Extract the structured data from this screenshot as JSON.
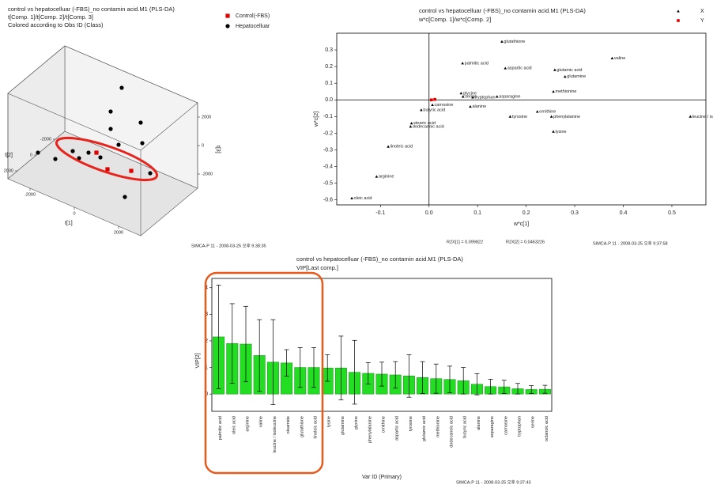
{
  "chart_data": [
    {
      "type": "scatter3d",
      "title": "control vs hepatocelluar (-FBS)_no contamin acid.M1 (PLS-DA)",
      "subtitle": "t[Comp. 1]/t[Comp. 2]/t[Comp. 3]",
      "caption": "Colored according to Obs ID (Class)",
      "x_label": "t[1]",
      "y_label": "t[2]",
      "z_label": "t[3]",
      "xlim": [
        -3000,
        3000
      ],
      "ylim": [
        -3000,
        3000
      ],
      "zlim": [
        -3000,
        3000
      ],
      "xticks": [
        -2000,
        0,
        2000
      ],
      "yticks": [
        -2000,
        0,
        2000
      ],
      "zticks": [
        -2000,
        0,
        2000
      ],
      "series": [
        {
          "name": "Control(-FBS)",
          "color": "#e00000",
          "marker": "square",
          "x": [
            1160,
            1925,
            236
          ],
          "y": [
            2208,
            1490,
            1217
          ],
          "z": [
            0,
            0,
            0
          ]
        },
        {
          "name": "Hepatocelluar",
          "color": "#000000",
          "marker": "circle",
          "x": [
            208,
            321,
            613,
            1245,
            1264,
            0,
            524,
            -85,
            -528,
            -1019,
            -2528,
            2160,
            2321,
            -57
          ],
          "y": [
            -349,
            -85,
            -236,
            -1094,
            -1217,
            1500,
            1472,
            2302,
            1934,
            2623,
            934,
            2708,
            415,
            -2132
          ],
          "z": [
            2000,
            1000,
            0,
            1500,
            0,
            0,
            0,
            0,
            0,
            -500,
            -2000,
            -1000,
            -500,
            2500
          ]
        }
      ],
      "footer": "SIMCA-P 11 - 2008-03-25 오후 9:38:35"
    },
    {
      "type": "scatter",
      "title": "control vs hepatocelluar (-FBS)_no contamin acid.M1 (PLS-DA)",
      "subtitle": "w*c[Comp. 1]/w*c[Comp. 2]",
      "x_label": "w*c[1]",
      "y_label": "w*c[2]",
      "xlim": [
        -0.19,
        0.57
      ],
      "ylim": [
        -0.63,
        0.4
      ],
      "xticks": [
        -0.1,
        {
          "value": 0,
          "label": "0.0"
        },
        0.1,
        0.2,
        0.3,
        0.4,
        0.5
      ],
      "yticks": [
        -0.6,
        -0.5,
        -0.4,
        -0.3,
        -0.2,
        -0.1,
        {
          "value": 0,
          "label": "0.0"
        },
        0.1,
        0.2,
        0.3
      ],
      "zero_lines": true,
      "series": [
        {
          "name": "X",
          "color": "#000000",
          "marker": "triangle",
          "labels": [
            "glutathione",
            "valine",
            "palmitic acid",
            "aspartic acid",
            "glutamic acid",
            "glutamine",
            "methionine",
            "glycine",
            "serine",
            "tryptophan",
            "asparagine",
            "carnosine",
            "butyric acid",
            "alanine",
            "ornithine",
            "tyrosine",
            "phenylalanine",
            "leucine / isoleucine",
            "stearic acid",
            "dodecanoic acid",
            "lysine",
            "linoleic acid",
            "arginine",
            "oleic acid"
          ],
          "x": [
            0.15,
            0.377,
            0.069,
            0.157,
            0.259,
            0.28,
            0.256,
            0.066,
            0.07,
            0.09,
            0.14,
            0.007,
            -0.016,
            0.085,
            0.223,
            0.167,
            0.252,
            0.538,
            -0.036,
            -0.038,
            0.256,
            -0.084,
            -0.108,
            -0.159
          ],
          "y": [
            0.35,
            0.25,
            0.22,
            0.19,
            0.18,
            0.14,
            0.05,
            0.04,
            0.02,
            0.015,
            0.02,
            -0.03,
            -0.06,
            -0.04,
            -0.07,
            -0.1,
            -0.1,
            -0.1,
            -0.14,
            -0.16,
            -0.19,
            -0.28,
            -0.46,
            -0.59
          ]
        },
        {
          "name": "Y",
          "color": "#e00000",
          "marker": "square",
          "x": [
            0.005,
            0.012
          ],
          "y": [
            0.0,
            0.003
          ]
        }
      ],
      "annotations": [
        "R2X[1] = 0.099822",
        "R2X[2] = 0.0463226"
      ],
      "footer": "SIMCA-P 11 - 2008-03-25 오후 9:37:58"
    },
    {
      "type": "bar",
      "title": "control vs hepatocelluar (-FBS)_no contamin acid.M1 (PLS-DA)",
      "subtitle": "VIP[Last comp.]",
      "x_label": "Var ID (Primary)",
      "y_label": "VIP[2]",
      "color": "#22dd22",
      "categories": [
        "palmitic acid",
        "oleic acid",
        "arginine",
        "valine",
        "leucine / isoleucine",
        "oleamide",
        "glutathione",
        "linoleic acid",
        "lysine",
        "glutamine",
        "glycine",
        "phenylalanine",
        "ornithine",
        "aspartic acid",
        "tyrosine",
        "glutamic acid",
        "methionine",
        "dodecanoic acid",
        "butyric acid",
        "alanine",
        "asparagine",
        "carnosine",
        "tryptophan",
        "serine",
        "octanoic acid"
      ],
      "values": [
        2.15,
        1.9,
        1.88,
        1.45,
        1.2,
        1.17,
        1.0,
        1.0,
        0.98,
        0.98,
        0.82,
        0.78,
        0.75,
        0.72,
        0.68,
        0.62,
        0.58,
        0.55,
        0.5,
        0.37,
        0.28,
        0.27,
        0.2,
        0.17,
        0.18
      ],
      "errors": [
        1.95,
        1.5,
        1.42,
        1.35,
        1.6,
        0.5,
        0.75,
        0.75,
        0.5,
        1.2,
        1.2,
        0.4,
        0.45,
        0.5,
        0.8,
        0.6,
        0.55,
        0.5,
        0.5,
        0.4,
        0.28,
        0.25,
        0.2,
        0.15,
        0.15
      ],
      "ylim": [
        -0.65,
        4.35
      ],
      "yticks": [
        0,
        1,
        2,
        3,
        4
      ],
      "footer": "SIMCA-P 11 - 2008-03-25 오후 9:37:43"
    }
  ]
}
